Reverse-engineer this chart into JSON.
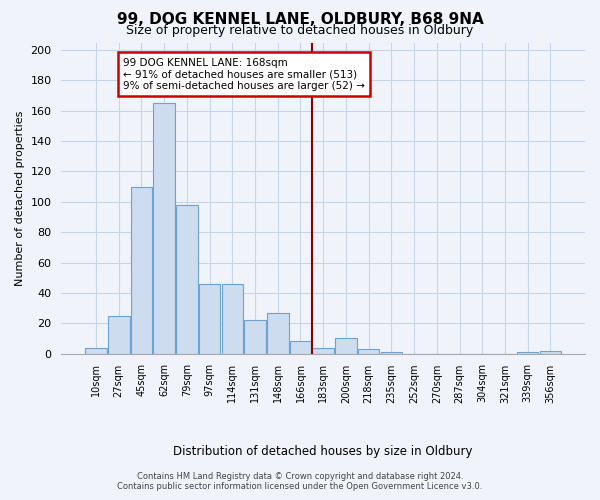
{
  "title": "99, DOG KENNEL LANE, OLDBURY, B68 9NA",
  "subtitle": "Size of property relative to detached houses in Oldbury",
  "xlabel": "Distribution of detached houses by size in Oldbury",
  "ylabel": "Number of detached properties",
  "bar_labels": [
    "10sqm",
    "27sqm",
    "45sqm",
    "62sqm",
    "79sqm",
    "97sqm",
    "114sqm",
    "131sqm",
    "148sqm",
    "166sqm",
    "183sqm",
    "200sqm",
    "218sqm",
    "235sqm",
    "252sqm",
    "270sqm",
    "287sqm",
    "304sqm",
    "321sqm",
    "339sqm",
    "356sqm"
  ],
  "bar_values": [
    4,
    25,
    110,
    165,
    98,
    46,
    46,
    22,
    27,
    8,
    4,
    10,
    3,
    1,
    0,
    0,
    0,
    0,
    0,
    1,
    2
  ],
  "bar_color": "#cddcee",
  "bar_edge_color": "#6ea3d0",
  "vline_x": 9.5,
  "vline_color": "#8b0000",
  "annotation_title": "99 DOG KENNEL LANE: 168sqm",
  "annotation_line1": "← 91% of detached houses are smaller (513)",
  "annotation_line2": "9% of semi-detached houses are larger (52) →",
  "annotation_box_color": "#ffffff",
  "annotation_box_edge": "#cc0000",
  "ylim": [
    0,
    205
  ],
  "yticks": [
    0,
    20,
    40,
    60,
    80,
    100,
    120,
    140,
    160,
    180,
    200
  ],
  "footer_line1": "Contains HM Land Registry data © Crown copyright and database right 2024.",
  "footer_line2": "Contains public sector information licensed under the Open Government Licence v3.0.",
  "bg_color": "#f0f4fa",
  "grid_color": "#c8d4e8"
}
